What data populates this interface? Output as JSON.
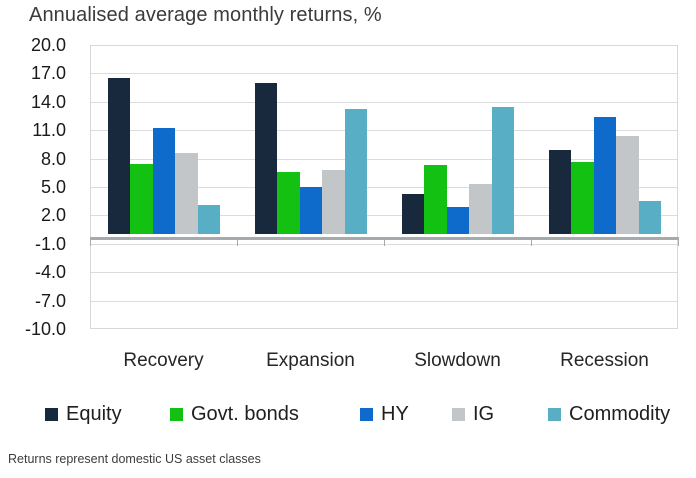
{
  "title": "Annualised average monthly returns, %",
  "footnote": "Returns represent domestic US asset classes",
  "colors": {
    "equity": "#18293e",
    "govt_bonds": "#12c112",
    "hy": "#0e6bcb",
    "ig": "#c3c6c8",
    "commodity": "#58aec5",
    "axis_line": "#a5aaae",
    "gridline": "#dadcde",
    "title_text": "#3b3b3b",
    "tick_text": "#1a1a1a"
  },
  "chart_data": {
    "type": "bar",
    "title": "Annualised average monthly returns, %",
    "xlabel": "",
    "ylabel": "",
    "categories": [
      "Recovery",
      "Expansion",
      "Slowdown",
      "Recession"
    ],
    "series": [
      {
        "name": "Equity",
        "color": "#18293e",
        "values": [
          16.5,
          16.0,
          4.3,
          8.9
        ]
      },
      {
        "name": "Govt. bonds",
        "color": "#12c112",
        "values": [
          7.4,
          6.6,
          7.3,
          7.6
        ]
      },
      {
        "name": "HY",
        "color": "#0e6bcb",
        "values": [
          11.2,
          5.0,
          2.9,
          12.4
        ]
      },
      {
        "name": "IG",
        "color": "#c3c6c8",
        "values": [
          8.6,
          6.8,
          5.3,
          10.4
        ]
      },
      {
        "name": "Commodity",
        "color": "#58aec5",
        "values": [
          3.1,
          13.2,
          13.5,
          3.5
        ]
      }
    ],
    "ylim": [
      -10.0,
      20.0
    ],
    "ytick_step": 3.0,
    "yticks": [
      20.0,
      17.0,
      14.0,
      11.0,
      8.0,
      5.0,
      2.0,
      -1.0,
      -4.0,
      -7.0,
      -10.0
    ],
    "grid": true,
    "legend_position": "bottom"
  }
}
